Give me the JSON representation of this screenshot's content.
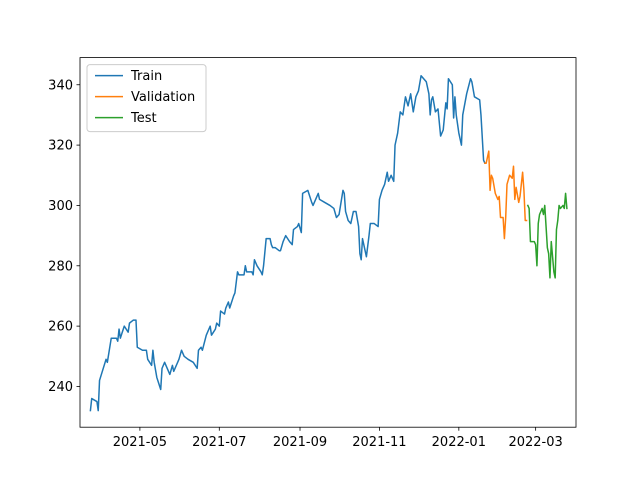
{
  "chart_data": {
    "type": "line",
    "title": "",
    "xlabel": "",
    "ylabel": "",
    "x_axis": {
      "type": "date",
      "range": [
        "2021-03-16",
        "2022-04-01"
      ],
      "ticks": [
        {
          "value": "2021-05-01",
          "label": "2021-05"
        },
        {
          "value": "2021-07-01",
          "label": "2021-07"
        },
        {
          "value": "2021-09-01",
          "label": "2021-09"
        },
        {
          "value": "2021-11-01",
          "label": "2021-11"
        },
        {
          "value": "2022-01-01",
          "label": "2022-01"
        },
        {
          "value": "2022-03-01",
          "label": "2022-03"
        }
      ]
    },
    "y_axis": {
      "range": [
        226.5,
        349
      ],
      "ticks": [
        240,
        260,
        280,
        300,
        320,
        340
      ]
    },
    "grid": false,
    "legend": {
      "position": "top-left",
      "entries": [
        "Train",
        "Validation",
        "Test"
      ]
    },
    "series": [
      {
        "name": "Train",
        "color": "#1f77b4",
        "points": [
          [
            "2021-03-24",
            232
          ],
          [
            "2021-03-25",
            236
          ],
          [
            "2021-03-29",
            235
          ],
          [
            "2021-03-30",
            232
          ],
          [
            "2021-03-31",
            242
          ],
          [
            "2021-04-05",
            249
          ],
          [
            "2021-04-06",
            248
          ],
          [
            "2021-04-09",
            256
          ],
          [
            "2021-04-13",
            256
          ],
          [
            "2021-04-14",
            255
          ],
          [
            "2021-04-15",
            259
          ],
          [
            "2021-04-16",
            256
          ],
          [
            "2021-04-19",
            260
          ],
          [
            "2021-04-22",
            258
          ],
          [
            "2021-04-23",
            261
          ],
          [
            "2021-04-26",
            262
          ],
          [
            "2021-04-28",
            262
          ],
          [
            "2021-04-29",
            253
          ],
          [
            "2021-05-03",
            252
          ],
          [
            "2021-05-06",
            252
          ],
          [
            "2021-05-07",
            249
          ],
          [
            "2021-05-10",
            247
          ],
          [
            "2021-05-11",
            252
          ],
          [
            "2021-05-12",
            248
          ],
          [
            "2021-05-14",
            243
          ],
          [
            "2021-05-17",
            239
          ],
          [
            "2021-05-18",
            246
          ],
          [
            "2021-05-20",
            248
          ],
          [
            "2021-05-24",
            244
          ],
          [
            "2021-05-26",
            247
          ],
          [
            "2021-05-27",
            245
          ],
          [
            "2021-05-31",
            249
          ],
          [
            "2021-06-02",
            252
          ],
          [
            "2021-06-04",
            250
          ],
          [
            "2021-06-07",
            249
          ],
          [
            "2021-06-11",
            248
          ],
          [
            "2021-06-14",
            246
          ],
          [
            "2021-06-15",
            252
          ],
          [
            "2021-06-17",
            253
          ],
          [
            "2021-06-18",
            252
          ],
          [
            "2021-06-21",
            257
          ],
          [
            "2021-06-24",
            260
          ],
          [
            "2021-06-25",
            257
          ],
          [
            "2021-06-28",
            259
          ],
          [
            "2021-06-29",
            261
          ],
          [
            "2021-07-01",
            260
          ],
          [
            "2021-07-02",
            265
          ],
          [
            "2021-07-05",
            264
          ],
          [
            "2021-07-06",
            266
          ],
          [
            "2021-07-08",
            268
          ],
          [
            "2021-07-09",
            266
          ],
          [
            "2021-07-12",
            270
          ],
          [
            "2021-07-13",
            271
          ],
          [
            "2021-07-15",
            278
          ],
          [
            "2021-07-16",
            277
          ],
          [
            "2021-07-20",
            277
          ],
          [
            "2021-07-21",
            280
          ],
          [
            "2021-07-22",
            278
          ],
          [
            "2021-07-26",
            278
          ],
          [
            "2021-07-27",
            277
          ],
          [
            "2021-07-28",
            282
          ],
          [
            "2021-07-30",
            280
          ],
          [
            "2021-08-02",
            278
          ],
          [
            "2021-08-03",
            277
          ],
          [
            "2021-08-04",
            280
          ],
          [
            "2021-08-06",
            289
          ],
          [
            "2021-08-09",
            289
          ],
          [
            "2021-08-10",
            287
          ],
          [
            "2021-08-11",
            286
          ],
          [
            "2021-08-13",
            286
          ],
          [
            "2021-08-16",
            285
          ],
          [
            "2021-08-17",
            285
          ],
          [
            "2021-08-19",
            288
          ],
          [
            "2021-08-21",
            290
          ],
          [
            "2021-08-24",
            288
          ],
          [
            "2021-08-26",
            287
          ],
          [
            "2021-08-27",
            292
          ],
          [
            "2021-08-30",
            293
          ],
          [
            "2021-08-31",
            294
          ],
          [
            "2021-09-02",
            291
          ],
          [
            "2021-09-03",
            304
          ],
          [
            "2021-09-07",
            305
          ],
          [
            "2021-09-10",
            301
          ],
          [
            "2021-09-11",
            300
          ],
          [
            "2021-09-13",
            302
          ],
          [
            "2021-09-15",
            304
          ],
          [
            "2021-09-16",
            302
          ],
          [
            "2021-09-20",
            301
          ],
          [
            "2021-09-24",
            300
          ],
          [
            "2021-09-27",
            299
          ],
          [
            "2021-09-29",
            296
          ],
          [
            "2021-10-01",
            297
          ],
          [
            "2021-10-04",
            305
          ],
          [
            "2021-10-05",
            304
          ],
          [
            "2021-10-06",
            298
          ],
          [
            "2021-10-08",
            295
          ],
          [
            "2021-10-10",
            294
          ],
          [
            "2021-10-12",
            298
          ],
          [
            "2021-10-14",
            298
          ],
          [
            "2021-10-16",
            293
          ],
          [
            "2021-10-17",
            284
          ],
          [
            "2021-10-18",
            282
          ],
          [
            "2021-10-19",
            289
          ],
          [
            "2021-10-21",
            285
          ],
          [
            "2021-10-22",
            283
          ],
          [
            "2021-10-24",
            290
          ],
          [
            "2021-10-25",
            294
          ],
          [
            "2021-10-28",
            294
          ],
          [
            "2021-10-31",
            293
          ],
          [
            "2021-11-01",
            302
          ],
          [
            "2021-11-03",
            305
          ],
          [
            "2021-11-05",
            307
          ],
          [
            "2021-11-07",
            311
          ],
          [
            "2021-11-08",
            308
          ],
          [
            "2021-11-10",
            310
          ],
          [
            "2021-11-12",
            308
          ],
          [
            "2021-11-13",
            320
          ],
          [
            "2021-11-15",
            324
          ],
          [
            "2021-11-17",
            331
          ],
          [
            "2021-11-19",
            330
          ],
          [
            "2021-11-21",
            336
          ],
          [
            "2021-11-23",
            333
          ],
          [
            "2021-11-25",
            337
          ],
          [
            "2021-11-27",
            331
          ],
          [
            "2021-11-29",
            336
          ],
          [
            "2021-12-01",
            338
          ],
          [
            "2021-12-03",
            343
          ],
          [
            "2021-12-07",
            341
          ],
          [
            "2021-12-09",
            337
          ],
          [
            "2021-12-10",
            330
          ],
          [
            "2021-12-11",
            335
          ],
          [
            "2021-12-12",
            336
          ],
          [
            "2021-12-14",
            331
          ],
          [
            "2021-12-16",
            332
          ],
          [
            "2021-12-18",
            323
          ],
          [
            "2021-12-20",
            325
          ],
          [
            "2021-12-22",
            334
          ],
          [
            "2021-12-23",
            332
          ],
          [
            "2021-12-24",
            342
          ],
          [
            "2021-12-27",
            340
          ],
          [
            "2021-12-28",
            329
          ],
          [
            "2021-12-29",
            336
          ],
          [
            "2021-12-30",
            330
          ],
          [
            "2022-01-01",
            324
          ],
          [
            "2022-01-03",
            320
          ],
          [
            "2022-01-04",
            330
          ],
          [
            "2022-01-07",
            337
          ],
          [
            "2022-01-10",
            342
          ],
          [
            "2022-01-11",
            341
          ],
          [
            "2022-01-13",
            336
          ],
          [
            "2022-01-17",
            335
          ],
          [
            "2022-01-18",
            330
          ],
          [
            "2022-01-20",
            315
          ],
          [
            "2022-01-21",
            314
          ]
        ]
      },
      {
        "name": "Validation",
        "color": "#ff7f0e",
        "points": [
          [
            "2022-01-21",
            314
          ],
          [
            "2022-01-22",
            314
          ],
          [
            "2022-01-24",
            318
          ],
          [
            "2022-01-25",
            305
          ],
          [
            "2022-01-26",
            310
          ],
          [
            "2022-01-27",
            309
          ],
          [
            "2022-01-29",
            304
          ],
          [
            "2022-01-31",
            302
          ],
          [
            "2022-02-01",
            303
          ],
          [
            "2022-02-02",
            296
          ],
          [
            "2022-02-03",
            296
          ],
          [
            "2022-02-04",
            296
          ],
          [
            "2022-02-05",
            289
          ],
          [
            "2022-02-06",
            296
          ],
          [
            "2022-02-07",
            307
          ],
          [
            "2022-02-09",
            310
          ],
          [
            "2022-02-11",
            309
          ],
          [
            "2022-02-12",
            313
          ],
          [
            "2022-02-13",
            302
          ],
          [
            "2022-02-14",
            306
          ],
          [
            "2022-02-16",
            301
          ],
          [
            "2022-02-17",
            303
          ],
          [
            "2022-02-19",
            311
          ],
          [
            "2022-02-20",
            305
          ],
          [
            "2022-02-21",
            295
          ],
          [
            "2022-02-22",
            295
          ]
        ]
      },
      {
        "name": "Test",
        "color": "#2ca02c",
        "points": [
          [
            "2022-02-23",
            300
          ],
          [
            "2022-02-24",
            299
          ],
          [
            "2022-02-25",
            288
          ],
          [
            "2022-02-28",
            288
          ],
          [
            "2022-03-01",
            287
          ],
          [
            "2022-03-02",
            280
          ],
          [
            "2022-03-03",
            294
          ],
          [
            "2022-03-04",
            297
          ],
          [
            "2022-03-06",
            299
          ],
          [
            "2022-03-07",
            297
          ],
          [
            "2022-03-08",
            300
          ],
          [
            "2022-03-09",
            293
          ],
          [
            "2022-03-10",
            286
          ],
          [
            "2022-03-11",
            284
          ],
          [
            "2022-03-12",
            276
          ],
          [
            "2022-03-13",
            288
          ],
          [
            "2022-03-14",
            283
          ],
          [
            "2022-03-15",
            278
          ],
          [
            "2022-03-16",
            276
          ],
          [
            "2022-03-17",
            292
          ],
          [
            "2022-03-18",
            295
          ],
          [
            "2022-03-19",
            300
          ],
          [
            "2022-03-20",
            299
          ],
          [
            "2022-03-22",
            300
          ],
          [
            "2022-03-23",
            299
          ],
          [
            "2022-03-24",
            304
          ],
          [
            "2022-03-25",
            299
          ]
        ]
      }
    ]
  }
}
